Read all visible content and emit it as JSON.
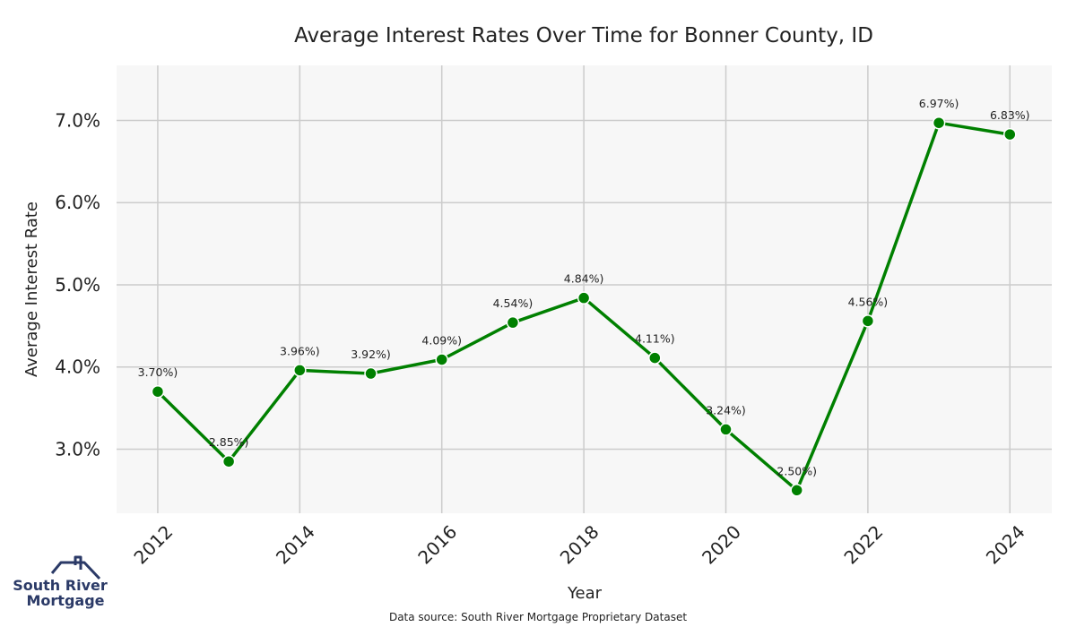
{
  "chart_data": {
    "type": "line",
    "title": "Average Interest Rates Over Time for Bonner County, ID",
    "xlabel": "Year",
    "ylabel": "Average Interest Rate",
    "x": [
      2012,
      2013,
      2014,
      2015,
      2016,
      2017,
      2018,
      2019,
      2020,
      2021,
      2022,
      2023,
      2024
    ],
    "series": [
      {
        "values": [
          3.7,
          2.85,
          3.96,
          3.92,
          4.09,
          4.54,
          4.84,
          4.11,
          3.24,
          2.5,
          4.56,
          6.97,
          6.83
        ]
      }
    ],
    "data_labels": [
      "3.70%)",
      "2.85%)",
      "3.96%)",
      "3.92%)",
      "4.09%)",
      "4.54%)",
      "4.84%)",
      "4.11%)",
      "3.24%)",
      "2.50%)",
      "4.56%)",
      "6.97%)",
      "6.83%)"
    ],
    "x_ticks": [
      "2012",
      "2014",
      "2016",
      "2018",
      "2020",
      "2022",
      "2024"
    ],
    "x_tick_values": [
      2012,
      2014,
      2016,
      2018,
      2020,
      2022,
      2024
    ],
    "y_ticks": [
      "3.0%",
      "4.0%",
      "5.0%",
      "6.0%",
      "7.0%"
    ],
    "y_tick_values": [
      3.0,
      4.0,
      5.0,
      6.0,
      7.0
    ],
    "xlim": [
      2011.42,
      2024.59
    ],
    "ylim": [
      2.22,
      7.67
    ],
    "grid": true,
    "line_color": "#008000",
    "background_color": "#f7f7f7",
    "grid_color": "#cccccc"
  },
  "source_note": "Data source: South River Mortgage Proprietary Dataset",
  "logo": {
    "line1": "South River",
    "line2": "Mortgage",
    "color": "#2b3a67"
  }
}
